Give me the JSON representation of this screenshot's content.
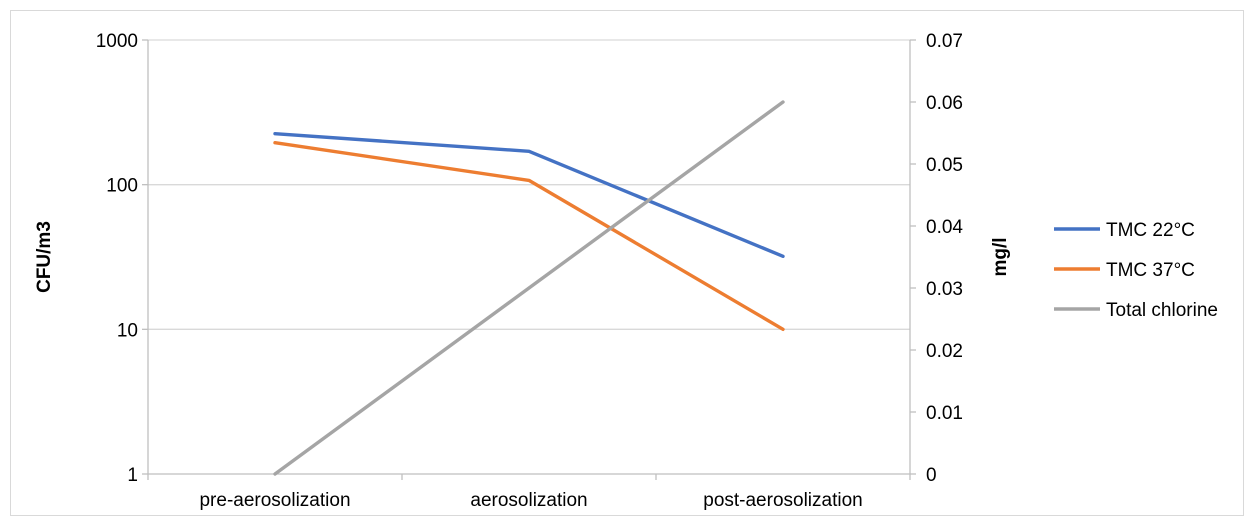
{
  "chart_data": {
    "type": "line",
    "categories": [
      "pre-aerosolization",
      "aerosolization",
      "post-aerosolization"
    ],
    "left_axis": {
      "label": "CFU/m3",
      "scale": "log",
      "range": [
        1,
        1000
      ],
      "ticks": [
        1,
        10,
        100,
        1000
      ],
      "tick_labels": [
        "1",
        "10",
        "100",
        "1000"
      ]
    },
    "right_axis": {
      "label": "mg/l",
      "scale": "linear",
      "range": [
        0,
        0.07
      ],
      "ticks": [
        0,
        0.01,
        0.02,
        0.03,
        0.04,
        0.05,
        0.06,
        0.07
      ],
      "tick_labels": [
        "0",
        "0.01",
        "0.02",
        "0.03",
        "0.04",
        "0.05",
        "0.06",
        "0.07"
      ]
    },
    "series": [
      {
        "name": "TMC 22°C",
        "axis": "left",
        "color": "#4472c4",
        "values": [
          225,
          170,
          32
        ]
      },
      {
        "name": "TMC 37°C",
        "axis": "left",
        "color": "#ed7d31",
        "values": [
          195,
          107,
          10
        ]
      },
      {
        "name": "Total chlorine",
        "axis": "right",
        "color": "#a5a5a5",
        "values": [
          0,
          0.03,
          0.06
        ]
      }
    ],
    "grid": true,
    "legend_position": "right"
  }
}
